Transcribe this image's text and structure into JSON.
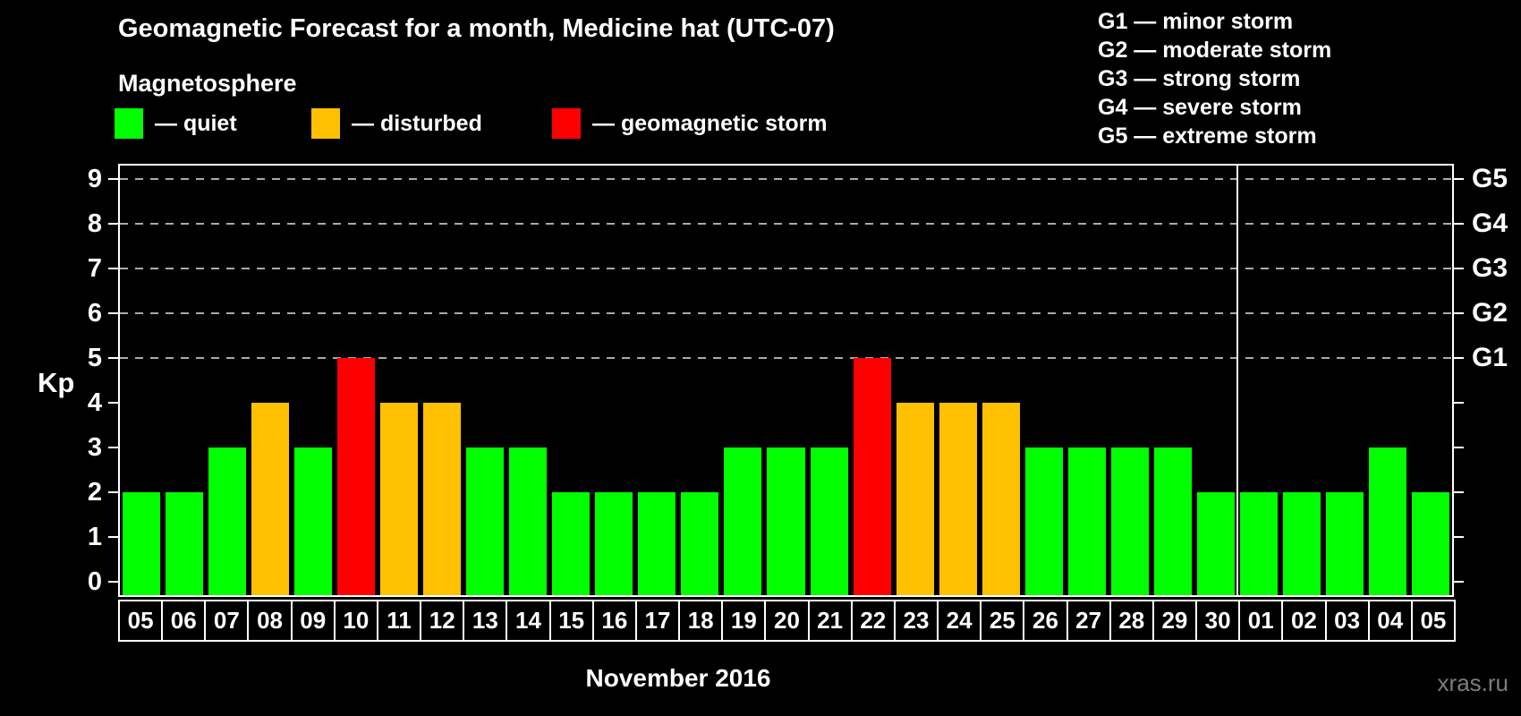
{
  "header": {
    "title": "Geomagnetic Forecast for a month, Medicine hat (UTC-07)"
  },
  "legend": {
    "title": "Magnetosphere",
    "items": [
      {
        "name": "quiet",
        "label": "— quiet",
        "color": "#00ff00"
      },
      {
        "name": "disturbed",
        "label": "— disturbed",
        "color": "#ffc000"
      },
      {
        "name": "storm",
        "label": "— geomagnetic storm",
        "color": "#ff0000"
      }
    ]
  },
  "g_legend": [
    "G1 — minor storm",
    "G2 — moderate storm",
    "G3 — strong storm",
    "G4 — severe storm",
    "G5 — extreme storm"
  ],
  "watermark": "xras.ru",
  "chart_data": {
    "type": "bar",
    "title": "Geomagnetic Forecast for a month, Medicine hat (UTC-07)",
    "xlabel": "November 2016",
    "ylabel": "Kp",
    "ylim": [
      0,
      9
    ],
    "yticks": [
      0,
      1,
      2,
      3,
      4,
      5,
      6,
      7,
      8,
      9
    ],
    "grid": "dashed horizontal lines at Kp 5-9 only",
    "gridlines_at": [
      5,
      6,
      7,
      8,
      9
    ],
    "right_axis": {
      "labels": [
        "G1",
        "G2",
        "G3",
        "G4",
        "G5"
      ],
      "at": [
        5,
        6,
        7,
        8,
        9
      ]
    },
    "categories": [
      "05",
      "06",
      "07",
      "08",
      "09",
      "10",
      "11",
      "12",
      "13",
      "14",
      "15",
      "16",
      "17",
      "18",
      "19",
      "20",
      "21",
      "22",
      "23",
      "24",
      "25",
      "26",
      "27",
      "28",
      "29",
      "30",
      "01",
      "02",
      "03",
      "04",
      "05"
    ],
    "values": [
      2,
      2,
      3,
      4,
      3,
      5,
      4,
      4,
      3,
      3,
      2,
      2,
      2,
      2,
      3,
      3,
      3,
      5,
      4,
      4,
      4,
      3,
      3,
      3,
      3,
      2,
      2,
      2,
      2,
      3,
      2
    ],
    "statuses": [
      "quiet",
      "quiet",
      "quiet",
      "disturbed",
      "quiet",
      "storm",
      "disturbed",
      "disturbed",
      "quiet",
      "quiet",
      "quiet",
      "quiet",
      "quiet",
      "quiet",
      "quiet",
      "quiet",
      "quiet",
      "storm",
      "disturbed",
      "disturbed",
      "disturbed",
      "quiet",
      "quiet",
      "quiet",
      "quiet",
      "quiet",
      "quiet",
      "quiet",
      "quiet",
      "quiet",
      "quiet"
    ],
    "month_separator_after_index": 25,
    "colors": {
      "quiet": "#00ff00",
      "disturbed": "#ffc000",
      "storm": "#ff0000"
    },
    "legend_position": "top-left",
    "background": "#000000"
  }
}
